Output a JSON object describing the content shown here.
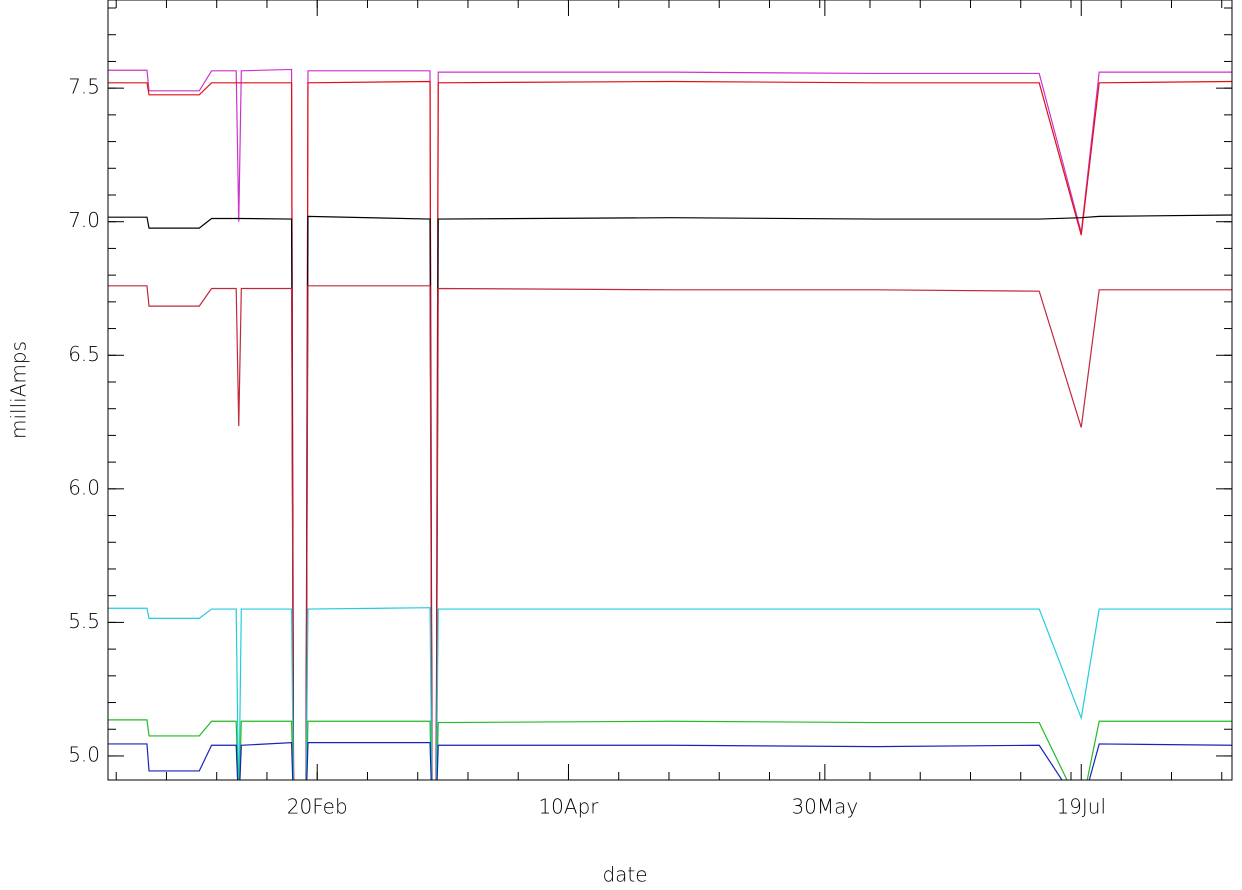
{
  "chart_data": {
    "type": "line",
    "x_label": "date",
    "y_label": "milliAmps",
    "x": [
      10.2,
      17.8,
      18.2,
      28.0,
      30.4,
      35.2,
      35.7,
      36.2,
      46.0,
      46.4,
      48.8,
      49.2,
      73.0,
      73.4,
      74.2,
      74.6,
      120,
      160,
      191.8,
      200,
      203.5,
      229.4
    ],
    "xlim": [
      10.2,
      229.4
    ],
    "xticks": [
      {
        "value": 51,
        "label": "20Feb"
      },
      {
        "value": 100,
        "label": "10Apr"
      },
      {
        "value": 150,
        "label": "30May"
      },
      {
        "value": 200,
        "label": "19Jul"
      }
    ],
    "ylim": [
      4.91,
      7.83
    ],
    "yticks": [
      {
        "value": 5,
        "label": "5.0"
      },
      5.5,
      {
        "value": 6,
        "label": "6.0"
      },
      6.5,
      {
        "value": 7,
        "label": "7.0"
      },
      7.5
    ],
    "series": [
      {
        "color": "#cc33cc",
        "values": [
          7.567,
          7.567,
          7.49,
          7.49,
          7.565,
          7.565,
          7.0,
          7.565,
          7.57,
          4.8,
          4.8,
          7.565,
          7.565,
          4.8,
          4.8,
          7.56,
          7.56,
          7.555,
          7.555,
          6.96,
          7.56,
          7.56
        ]
      },
      {
        "color": "#e01010",
        "values": [
          7.52,
          7.52,
          7.475,
          7.475,
          7.52,
          7.52,
          7.52,
          7.52,
          7.52,
          4.8,
          4.8,
          7.52,
          7.525,
          4.8,
          4.8,
          7.52,
          7.525,
          7.52,
          7.52,
          6.95,
          7.52,
          7.525
        ]
      },
      {
        "color": "#000000",
        "values": [
          7.017,
          7.017,
          6.976,
          6.976,
          7.012,
          7.012,
          7.012,
          7.012,
          7.01,
          4.8,
          4.8,
          7.02,
          7.01,
          4.8,
          4.8,
          7.01,
          7.015,
          7.01,
          7.01,
          7.015,
          7.02,
          7.025
        ]
      },
      {
        "color": "#c0283c",
        "values": [
          6.76,
          6.76,
          6.684,
          6.684,
          6.75,
          6.75,
          6.235,
          6.75,
          6.75,
          4.8,
          4.8,
          6.76,
          6.76,
          4.8,
          4.8,
          6.75,
          6.745,
          6.745,
          6.74,
          6.23,
          6.745,
          6.745
        ]
      },
      {
        "color": "#22ccdd",
        "values": [
          5.553,
          5.553,
          5.515,
          5.515,
          5.55,
          5.55,
          4.8,
          5.55,
          5.55,
          4.8,
          4.8,
          5.55,
          5.555,
          4.8,
          4.8,
          5.55,
          5.55,
          5.55,
          5.55,
          5.142,
          5.55,
          5.55
        ]
      },
      {
        "color": "#22bb22",
        "values": [
          5.135,
          5.135,
          5.075,
          5.075,
          5.13,
          5.13,
          4.8,
          5.13,
          5.13,
          4.8,
          4.8,
          5.13,
          5.13,
          4.8,
          4.8,
          5.125,
          5.13,
          5.125,
          5.125,
          4.8,
          5.13,
          5.13
        ]
      },
      {
        "color": "#1a22bb",
        "values": [
          5.045,
          5.045,
          4.944,
          4.944,
          5.04,
          5.04,
          4.8,
          5.04,
          5.05,
          4.8,
          4.8,
          5.05,
          5.05,
          4.8,
          4.8,
          5.04,
          5.04,
          5.035,
          5.04,
          4.8,
          5.045,
          5.04
        ]
      }
    ]
  }
}
